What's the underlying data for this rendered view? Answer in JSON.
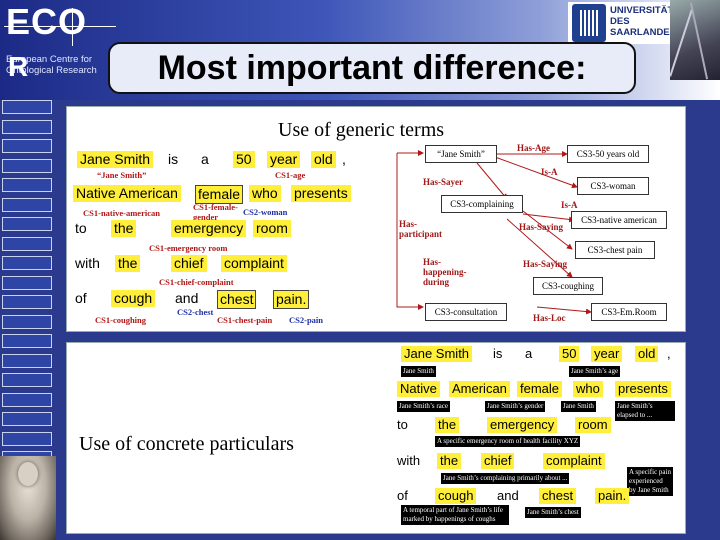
{
  "logo": {
    "line1": "ECO",
    "line2": "R",
    "subtitle": "European Centre for Ontological Research"
  },
  "title": "Most important difference:",
  "university": {
    "name": "UNIVERSITÄT DES SAARLANDES"
  },
  "panel1": {
    "heading": "Use of generic terms",
    "words": {
      "jane_smith": "Jane Smith",
      "is": "is",
      "a": "a",
      "fifty": "50",
      "year": "year",
      "old": "old",
      "comma": ",",
      "native_american": "Native  American",
      "female": "female",
      "who": "who",
      "presents": "presents",
      "to": "to",
      "the": "the",
      "emergency": "emergency",
      "room": "room",
      "with": "with",
      "the2": "the",
      "chief": "chief",
      "complaint": "complaint",
      "of": "of",
      "cough": "cough",
      "and": "and",
      "chest": "chest",
      "pain": "pain."
    },
    "tags": {
      "jane_smith_q": "“Jane Smith”",
      "cs1_age": "CS1-age",
      "cs1_native_american": "CS1-native-american",
      "cs1_female_gender": "CS1-female-gender",
      "cs2_woman": "CS2-woman",
      "cs1_emergency_room": "CS1-emergency room",
      "cs1_chief_complaint": "CS1-chief-complaint",
      "cs1_coughing": "CS1-coughing",
      "cs2_chest": "CS2-chest",
      "cs1_chest_pain": "CS1-chest-pain",
      "cs2_pain": "CS2-pain"
    },
    "nodes": {
      "jane_smith": "“Jane Smith”",
      "cs3_50": "CS3-50 years old",
      "cs3_woman": "CS3-woman",
      "cs3_complaining": "CS3-complaining",
      "cs3_native_american": "CS3-native american",
      "cs3_chest_pain": "CS3-chest pain",
      "cs3_coughing": "CS3-coughing",
      "cs3_consultation": "CS3-consultation",
      "cs3_em_room": "CS3-Em.Room"
    },
    "relations": {
      "has_age": "Has-Age",
      "is_a1": "Is-A",
      "has_sayer": "Has-Sayer",
      "is_a2": "Is-A",
      "has_participant": "Has-participant",
      "has_saying1": "Has-Saying",
      "has_saying2": "Has-Saying",
      "has_happening_during": "Has-happening-during",
      "has_loc": "Has-Loc"
    }
  },
  "panel2": {
    "heading": "Use of concrete particulars",
    "words": {
      "jane_smith": "Jane Smith",
      "is": "is",
      "a": "a",
      "fifty": "50",
      "year": "year",
      "old": "old",
      "comma": ",",
      "native": "Native",
      "american": "American",
      "female": "female",
      "who": "who",
      "presents": "presents",
      "to": "to",
      "the": "the",
      "emergency": "emergency",
      "room": "room",
      "with": "with",
      "the2": "the",
      "chief": "chief",
      "complaint": "complaint",
      "of": "of",
      "cough": "cough",
      "and": "and",
      "chest": "chest",
      "pain": "pain."
    },
    "labels": {
      "jane_smith": "Jane Smith",
      "jane_smiths_age": "Jane Smith’s age",
      "jane_smiths_race": "Jane Smith’s race",
      "jane_smiths_gender": "Jane Smith’s gender",
      "jane_smith2": "Jane Smith",
      "jane_smiths_elapsed": "Jane Smith’s elapsed to ...",
      "emergency_room_xyz": "A specific emergency room of health facility XYZ",
      "complaining": "Jane Smith’s complaining primarily about ...",
      "specific_pain": "A specific pain experienced by Jane Smith",
      "temporal_part": "A temporal part of Jane Smith’s life marked by happenings of coughs",
      "jane_smiths_chest": "Jane Smith’s chest"
    }
  },
  "colors": {
    "highlight": "#ffef3a",
    "tag_red": "#b01818",
    "tag_blue": "#2030a0",
    "header_dark": "#1c2a86",
    "label_black": "#000000"
  }
}
